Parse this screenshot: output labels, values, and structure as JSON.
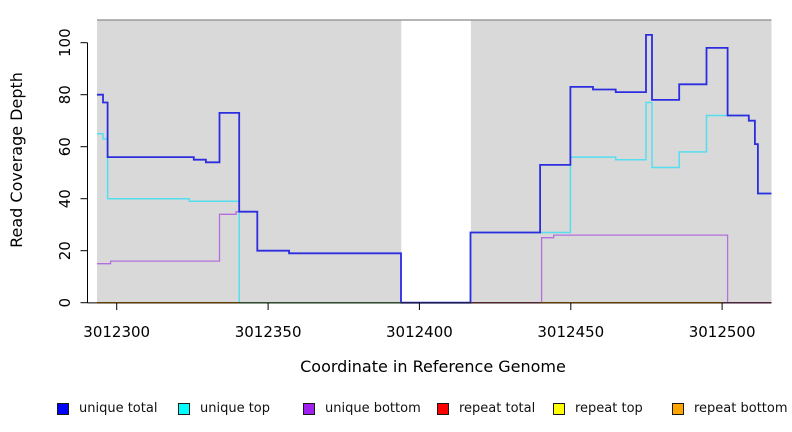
{
  "chart_data": {
    "type": "line",
    "subtype": "step",
    "title": "",
    "xlabel": "Coordinate in Reference Genome",
    "ylabel": "Read Coverage Depth",
    "xlim": [
      3012293.5,
      3012516.5
    ],
    "ylim": [
      0,
      108.7
    ],
    "grid": "off",
    "panel_bg": "#d9d9d9",
    "x_tick_values": [
      3012300,
      3012350,
      3012400,
      3012450,
      3012500
    ],
    "x_tick_labels": [
      "3012300",
      "3012350",
      "3012400",
      "3012450",
      "3012500"
    ],
    "y_tick_values": [
      0,
      20,
      40,
      60,
      80,
      100
    ],
    "y_tick_labels": [
      "0",
      "20",
      "40",
      "60",
      "80",
      "100"
    ],
    "masked_region": {
      "from": 3012394,
      "to": 3012417,
      "color": "#ffffff"
    },
    "series": [
      {
        "name": "repeat total",
        "color": "#e02020",
        "stroke_width": 1.2,
        "steps": [
          [
            3012293.5,
            0
          ]
        ]
      },
      {
        "name": "repeat top",
        "color": "#f0e800",
        "stroke_width": 1.2,
        "steps": [
          [
            3012293.5,
            0
          ]
        ]
      },
      {
        "name": "repeat bottom",
        "color": "#ffa500",
        "stroke_width": 1.4,
        "steps": [
          [
            3012293.5,
            0
          ]
        ]
      },
      {
        "name": "unique bottom",
        "color": "#b36fde",
        "stroke_width": 1.3,
        "steps": [
          [
            3012293.5,
            15
          ],
          [
            3012298,
            16
          ],
          [
            3012334,
            34
          ],
          [
            3012339.5,
            35
          ],
          [
            3012346.5,
            20
          ],
          [
            3012357,
            19
          ],
          [
            3012394,
            0
          ],
          [
            3012440.5,
            25
          ],
          [
            3012444.5,
            26
          ],
          [
            3012502,
            0
          ]
        ]
      },
      {
        "name": "unique top",
        "color": "#55dfee",
        "stroke_width": 1.5,
        "steps": [
          [
            3012293.5,
            65
          ],
          [
            3012295.5,
            63
          ],
          [
            3012297,
            40
          ],
          [
            3012324,
            39
          ],
          [
            3012340.5,
            0
          ],
          [
            3012417,
            27
          ],
          [
            3012450,
            56
          ],
          [
            3012465,
            55
          ],
          [
            3012475,
            77
          ],
          [
            3012477,
            52
          ],
          [
            3012486,
            58
          ],
          [
            3012495,
            72
          ],
          [
            3012509,
            70
          ],
          [
            3012511,
            61
          ],
          [
            3012512,
            42
          ]
        ]
      },
      {
        "name": "unique total",
        "color": "#2d2de0",
        "stroke_width": 1.8,
        "steps": [
          [
            3012293.5,
            80
          ],
          [
            3012295.5,
            77
          ],
          [
            3012297,
            56
          ],
          [
            3012325.5,
            55
          ],
          [
            3012329.5,
            54
          ],
          [
            3012334,
            73
          ],
          [
            3012340.5,
            35
          ],
          [
            3012346.5,
            20
          ],
          [
            3012357,
            19
          ],
          [
            3012394,
            0
          ],
          [
            3012417,
            27
          ],
          [
            3012440,
            53
          ],
          [
            3012450,
            83
          ],
          [
            3012457.5,
            82
          ],
          [
            3012465,
            81
          ],
          [
            3012475,
            103
          ],
          [
            3012477,
            78
          ],
          [
            3012486,
            84
          ],
          [
            3012495,
            98
          ],
          [
            3012502,
            72
          ],
          [
            3012509,
            70
          ],
          [
            3012511,
            61
          ],
          [
            3012512,
            42
          ]
        ]
      }
    ],
    "baseline_segments": [
      {
        "from": 3012293.5,
        "to": 3012340.5,
        "color": "#ffa500"
      },
      {
        "from": 3012340.5,
        "to": 3012394,
        "color": "#7ccb7c"
      },
      {
        "from": 3012394,
        "to": 3012417,
        "color": "#4a4ae0"
      },
      {
        "from": 3012417,
        "to": 3012440,
        "color": "#d4647e"
      },
      {
        "from": 3012440,
        "to": 3012500,
        "color": "#ffa500"
      },
      {
        "from": 3012500,
        "to": 3012516.5,
        "color": "#cf5fa6"
      }
    ],
    "legend": {
      "position": "bottom",
      "items": [
        {
          "label": "unique total",
          "color": "#0000ff"
        },
        {
          "label": "unique top",
          "color": "#00ffff"
        },
        {
          "label": "unique bottom",
          "color": "#a020f0"
        },
        {
          "label": "repeat total",
          "color": "#ff0000"
        },
        {
          "label": "repeat top",
          "color": "#ffff00"
        },
        {
          "label": "repeat bottom",
          "color": "#ffa500"
        }
      ]
    }
  }
}
